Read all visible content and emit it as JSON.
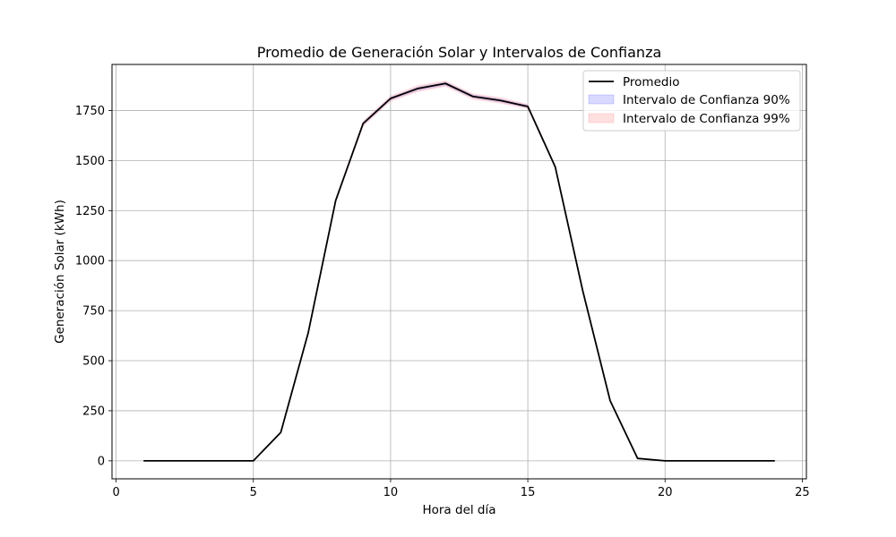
{
  "chart_data": {
    "type": "line",
    "title": "Promedio de Generación Solar y Intervalos de Confianza",
    "xlabel": "Hora del día",
    "ylabel": "Generación Solar (kWh)",
    "xlim": [
      -0.15,
      25.15
    ],
    "ylim": [
      -90,
      1980
    ],
    "x_ticks": [
      0,
      5,
      10,
      15,
      20,
      25
    ],
    "y_ticks": [
      0,
      250,
      500,
      750,
      1000,
      1250,
      1500,
      1750
    ],
    "grid": true,
    "legend_position": "top-right",
    "x": [
      1,
      2,
      3,
      4,
      5,
      6,
      7,
      8,
      9,
      10,
      11,
      12,
      13,
      14,
      15,
      16,
      17,
      18,
      19,
      20,
      21,
      22,
      23,
      24
    ],
    "series": [
      {
        "name": "Promedio",
        "kind": "line",
        "color": "#000000",
        "values": [
          0,
          0,
          0,
          0,
          0,
          142,
          640,
          1300,
          1685,
          1810,
          1860,
          1885,
          1820,
          1800,
          1770,
          1468,
          850,
          300,
          12,
          0,
          0,
          0,
          0,
          0
        ]
      },
      {
        "name": "Intervalo de Confianza 90%",
        "kind": "band",
        "color": "#0000ff",
        "lower": [
          0,
          0,
          0,
          0,
          0,
          140,
          636,
          1294,
          1675,
          1800,
          1848,
          1874,
          1810,
          1790,
          1762,
          1462,
          846,
          298,
          11,
          0,
          0,
          0,
          0,
          0
        ],
        "upper": [
          0,
          0,
          0,
          0,
          0,
          144,
          644,
          1306,
          1693,
          1818,
          1870,
          1894,
          1830,
          1810,
          1778,
          1474,
          854,
          302,
          13,
          0,
          0,
          0,
          0,
          0
        ]
      },
      {
        "name": "Intervalo de Confianza 99%",
        "kind": "band",
        "color": "#ff0000",
        "lower": [
          0,
          0,
          0,
          0,
          0,
          138,
          632,
          1288,
          1668,
          1794,
          1842,
          1868,
          1804,
          1784,
          1757,
          1458,
          843,
          296,
          10,
          0,
          0,
          0,
          0,
          0
        ],
        "upper": [
          0,
          0,
          0,
          0,
          0,
          146,
          648,
          1312,
          1700,
          1825,
          1877,
          1900,
          1836,
          1816,
          1783,
          1478,
          857,
          304,
          14,
          0,
          0,
          0,
          0,
          0
        ]
      }
    ]
  }
}
